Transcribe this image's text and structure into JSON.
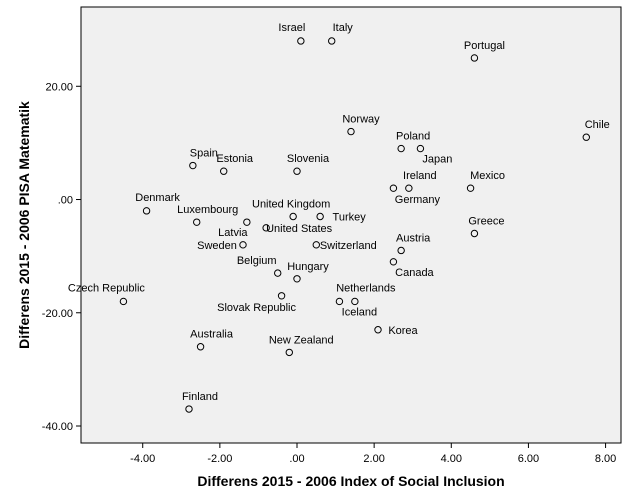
{
  "chart_data": {
    "type": "scatter",
    "title": "",
    "xlabel": "Differens 2015 - 2006 Index of Social Inclusion",
    "ylabel": "Differens 2015 - 2006 PISA Matematik",
    "xlim": [
      -5.6,
      8.4
    ],
    "ylim": [
      -43,
      34
    ],
    "xticks": [
      -4,
      -2,
      0,
      2,
      4,
      6,
      8
    ],
    "xtick_labels": [
      "-4.00",
      "-2.00",
      ".00",
      "2.00",
      "4.00",
      "6.00",
      "8.00"
    ],
    "yticks": [
      -40,
      -20,
      0,
      20
    ],
    "ytick_labels": [
      "-40.00",
      "-20.00",
      ".00",
      "20.00"
    ],
    "grid": false,
    "legend": "none",
    "plot_bg": "#f0f0f0",
    "points": [
      {
        "label": "Israel",
        "x": 0.1,
        "y": 28
      },
      {
        "label": "Italy",
        "x": 0.9,
        "y": 28
      },
      {
        "label": "Portugal",
        "x": 4.6,
        "y": 25
      },
      {
        "label": "Chile",
        "x": 7.5,
        "y": 11
      },
      {
        "label": "Norway",
        "x": 1.4,
        "y": 12
      },
      {
        "label": "Poland",
        "x": 2.7,
        "y": 9
      },
      {
        "label": "Japan",
        "x": 3.2,
        "y": 9
      },
      {
        "label": "Spain",
        "x": -2.7,
        "y": 6
      },
      {
        "label": "Estonia",
        "x": -1.9,
        "y": 5
      },
      {
        "label": "Slovenia",
        "x": 0.0,
        "y": 5
      },
      {
        "label": "Ireland",
        "x": 2.9,
        "y": 2
      },
      {
        "label": "Germany",
        "x": 2.5,
        "y": 2
      },
      {
        "label": "Mexico",
        "x": 4.5,
        "y": 2
      },
      {
        "label": "Denmark",
        "x": -3.9,
        "y": -2
      },
      {
        "label": "Luxembourg",
        "x": -2.6,
        "y": -4
      },
      {
        "label": "Latvia",
        "x": -1.3,
        "y": -4
      },
      {
        "label": "United Kingdom",
        "x": -0.1,
        "y": -3
      },
      {
        "label": "Turkey",
        "x": 0.6,
        "y": -3
      },
      {
        "label": "United States",
        "x": -0.8,
        "y": -5
      },
      {
        "label": "Greece",
        "x": 4.6,
        "y": -6
      },
      {
        "label": "Sweden",
        "x": -1.4,
        "y": -8
      },
      {
        "label": "Switzerland",
        "x": 0.5,
        "y": -8
      },
      {
        "label": "Austria",
        "x": 2.7,
        "y": -9
      },
      {
        "label": "Canada",
        "x": 2.5,
        "y": -11
      },
      {
        "label": "Belgium",
        "x": -0.5,
        "y": -13
      },
      {
        "label": "Hungary",
        "x": 0.0,
        "y": -14
      },
      {
        "label": "Czech Republic",
        "x": -4.5,
        "y": -18
      },
      {
        "label": "Slovak Republic",
        "x": -0.4,
        "y": -17
      },
      {
        "label": "Netherlands",
        "x": 1.5,
        "y": -18
      },
      {
        "label": "Iceland",
        "x": 1.1,
        "y": -18
      },
      {
        "label": "Korea",
        "x": 2.1,
        "y": -23
      },
      {
        "label": "Australia",
        "x": -2.5,
        "y": -26
      },
      {
        "label": "New Zealand",
        "x": -0.2,
        "y": -27
      },
      {
        "label": "Finland",
        "x": -2.8,
        "y": -37
      }
    ]
  }
}
